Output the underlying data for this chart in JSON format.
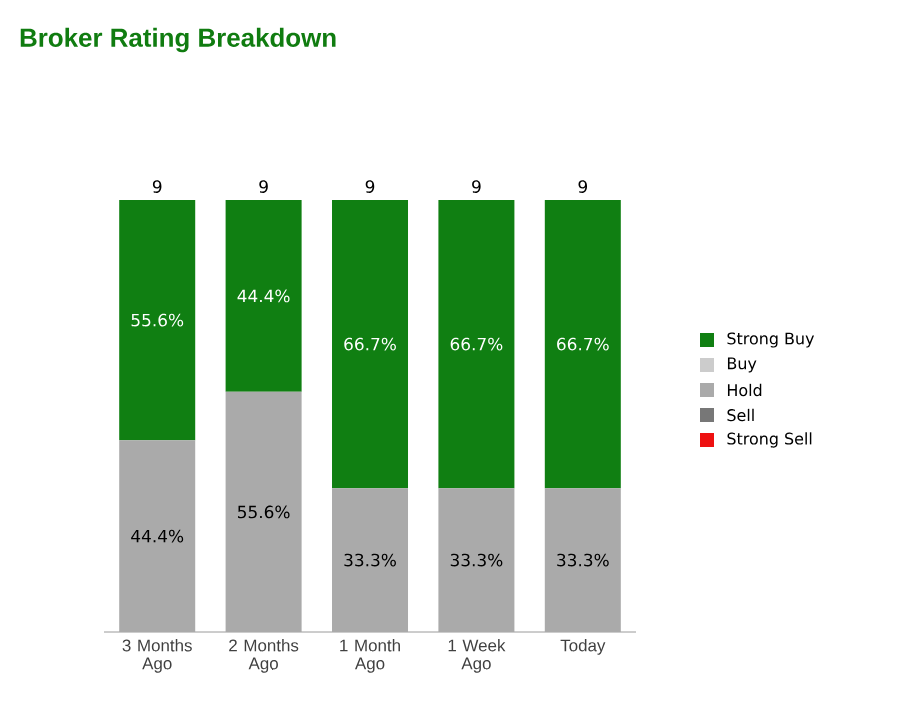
{
  "chart_data": {
    "type": "bar",
    "title": "Broker Rating Breakdown",
    "stacked": true,
    "categories": [
      "3 Months Ago",
      "2 Months Ago",
      "1 Month Ago",
      "1 Week Ago",
      "Today"
    ],
    "series": [
      {
        "name": "Strong Sell",
        "color": "#ee1111",
        "values": [
          null,
          null,
          null,
          null,
          null
        ]
      },
      {
        "name": "Sell",
        "color": "#777777",
        "values": [
          null,
          null,
          null,
          null,
          null
        ]
      },
      {
        "name": "Hold",
        "color": "#aaaaaa",
        "values": [
          44.4,
          55.6,
          33.3,
          33.3,
          33.3
        ],
        "value_labels": [
          "44.4%",
          "55.6%",
          "33.3%",
          "33.3%",
          "33.3%"
        ]
      },
      {
        "name": "Buy",
        "color": "#cccccc",
        "values": [
          null,
          null,
          null,
          null,
          null
        ]
      },
      {
        "name": "Strong Buy",
        "color": "#107f12",
        "values": [
          55.6,
          44.4,
          66.7,
          66.7,
          66.7
        ],
        "value_labels": [
          "55.6%",
          "44.4%",
          "66.7%",
          "66.7%",
          "66.7%"
        ]
      }
    ],
    "annotations": [
      {
        "text": "9",
        "x": "3 Months Ago",
        "y": 100
      },
      {
        "text": "9",
        "x": "2 Months Ago",
        "y": 100
      },
      {
        "text": "9",
        "x": "1 Month Ago",
        "y": 100
      },
      {
        "text": "9",
        "x": "1 Week Ago",
        "y": 100
      },
      {
        "text": "9",
        "x": "Today",
        "y": 100
      }
    ],
    "tick_labels": "x",
    "legend": "right"
  }
}
